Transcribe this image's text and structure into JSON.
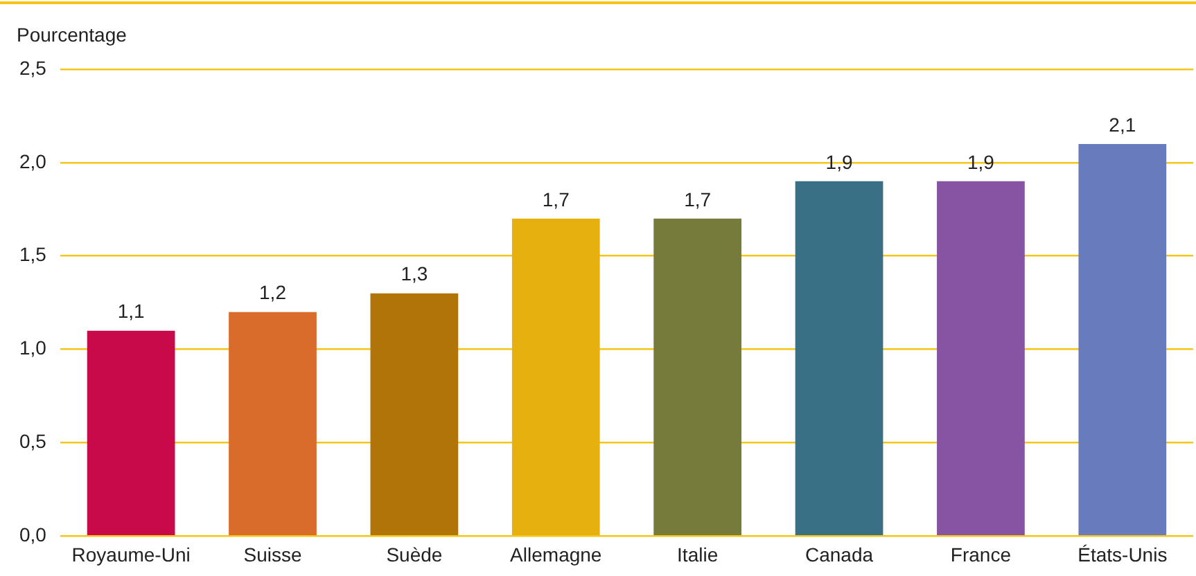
{
  "chart_data": {
    "type": "bar",
    "ylabel": "Pourcentage",
    "categories": [
      "Royaume-Uni",
      "Suisse",
      "Suède",
      "Allemagne",
      "Italie",
      "Canada",
      "France",
      "États-Unis"
    ],
    "values": [
      1.1,
      1.2,
      1.3,
      1.7,
      1.7,
      1.9,
      1.9,
      2.1
    ],
    "colors": [
      "#c8094a",
      "#d96b2b",
      "#b07408",
      "#e6b00f",
      "#767a3b",
      "#3a7085",
      "#8753a3",
      "#687bbd"
    ],
    "value_labels": [
      "1,1",
      "1,2",
      "1,3",
      "1,7",
      "1,7",
      "1,9",
      "1,9",
      "2,1"
    ],
    "ylim": [
      0,
      2.5
    ],
    "yticks": [
      {
        "value": 0,
        "label": "0,0"
      },
      {
        "value": 0.5,
        "label": "0,5"
      },
      {
        "value": 1,
        "label": "1,0"
      },
      {
        "value": 1.5,
        "label": "1,5"
      },
      {
        "value": 2,
        "label": "2,0"
      },
      {
        "value": 2.5,
        "label": "2,5"
      }
    ],
    "grid": "y",
    "legend": false
  }
}
